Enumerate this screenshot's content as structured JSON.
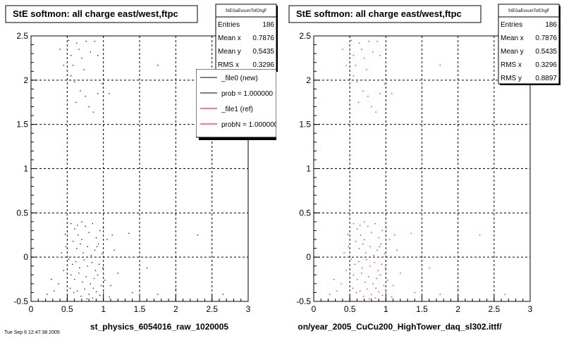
{
  "footer_text": "Tue Sep 6 12:47:38 2005",
  "chart_data": [
    {
      "type": "scatter",
      "title": "StE softmon: all charge east/west,ftpc",
      "xlabel": "st_physics_6054016_raw_1020005",
      "ylabel": "",
      "xlim": [
        0,
        3
      ],
      "ylim": [
        -0.5,
        2.5
      ],
      "x_ticks": [
        "0",
        "0.5",
        "1",
        "1.5",
        "2",
        "2.5",
        "3"
      ],
      "y_ticks": [
        "-0.5",
        "0",
        "0.5",
        "1",
        "1.5",
        "2",
        "2.5"
      ],
      "grid": true,
      "marker_color": "#000000",
      "stats": {
        "name": "StEGaEvsumTofChgF",
        "rows": [
          {
            "label": "Entries",
            "value": "186"
          },
          {
            "label": "Mean x",
            "value": "0.7876"
          },
          {
            "label": "Mean y",
            "value": "0.5435"
          },
          {
            "label": "RMS x",
            "value": "0.3296"
          }
        ]
      },
      "legend": {
        "placement": "top-right",
        "entries": [
          {
            "label": "_file0 (new)",
            "color": "#000000"
          },
          {
            "label": "prob = 1.000000",
            "color": "#000000"
          },
          {
            "label": "_file1 (ref)",
            "color": "#ff0000"
          },
          {
            "label": "probN = 1.000000",
            "color": "#ff0000"
          }
        ]
      }
    },
    {
      "type": "scatter",
      "title": "StE softmon: all charge east/west,ftpc",
      "xlabel": "on/year_2005_CuCu200_HighTower_daq_sl302.ittf/",
      "ylabel": "",
      "xlim": [
        0,
        3
      ],
      "ylim": [
        -0.5,
        2.5
      ],
      "x_ticks": [
        "0",
        "0.5",
        "1",
        "1.5",
        "2",
        "2.5",
        "3"
      ],
      "y_ticks": [
        "-0.5",
        "0",
        "0.5",
        "1",
        "1.5",
        "2",
        "2.5"
      ],
      "grid": true,
      "marker_color": "#ff0000",
      "stats": {
        "name": "StEGaEvsumTofChgF",
        "rows": [
          {
            "label": "Entries",
            "value": "186"
          },
          {
            "label": "Mean x",
            "value": "0.7876"
          },
          {
            "label": "Mean y",
            "value": "0.5435"
          },
          {
            "label": "RMS x",
            "value": "0.3296"
          },
          {
            "label": "RMS y",
            "value": "0.8897"
          }
        ]
      }
    }
  ],
  "points": [
    [
      0.52,
      2.45
    ],
    [
      0.55,
      2.28
    ],
    [
      0.58,
      2.17
    ],
    [
      0.63,
      2.42
    ],
    [
      0.66,
      2.35
    ],
    [
      0.7,
      2.25
    ],
    [
      0.73,
      2.12
    ],
    [
      0.76,
      2.44
    ],
    [
      0.82,
      2.32
    ],
    [
      0.88,
      2.44
    ],
    [
      0.92,
      2.28
    ],
    [
      0.55,
      2.05
    ],
    [
      0.6,
      1.98
    ],
    [
      0.68,
      1.88
    ],
    [
      0.75,
      1.82
    ],
    [
      0.8,
      1.7
    ],
    [
      0.86,
      1.64
    ],
    [
      0.92,
      1.85
    ],
    [
      0.98,
      1.96
    ],
    [
      0.62,
      1.75
    ],
    [
      0.45,
      2.17
    ],
    [
      0.4,
      2.35
    ],
    [
      1.75,
      2.17
    ],
    [
      1.08,
      1.85
    ],
    [
      0.55,
      0.38
    ],
    [
      0.6,
      0.32
    ],
    [
      0.65,
      0.25
    ],
    [
      0.7,
      0.4
    ],
    [
      0.75,
      0.35
    ],
    [
      0.8,
      0.28
    ],
    [
      0.85,
      0.38
    ],
    [
      0.9,
      0.22
    ],
    [
      0.95,
      0.3
    ],
    [
      1.0,
      0.33
    ],
    [
      0.58,
      0.18
    ],
    [
      0.63,
      0.1
    ],
    [
      0.68,
      0.15
    ],
    [
      0.72,
      0.05
    ],
    [
      0.78,
      0.12
    ],
    [
      0.83,
      0.02
    ],
    [
      0.88,
      0.08
    ],
    [
      0.93,
      0.15
    ],
    [
      0.98,
      0.04
    ],
    [
      1.05,
      0.2
    ],
    [
      0.52,
      -0.02
    ],
    [
      0.57,
      -0.08
    ],
    [
      0.62,
      -0.05
    ],
    [
      0.67,
      -0.12
    ],
    [
      0.73,
      -0.03
    ],
    [
      0.78,
      -0.1
    ],
    [
      0.84,
      -0.06
    ],
    [
      0.89,
      -0.15
    ],
    [
      0.94,
      -0.08
    ],
    [
      0.99,
      -0.12
    ],
    [
      0.55,
      -0.2
    ],
    [
      0.6,
      -0.25
    ],
    [
      0.66,
      -0.18
    ],
    [
      0.71,
      -0.28
    ],
    [
      0.76,
      -0.22
    ],
    [
      0.82,
      -0.3
    ],
    [
      0.87,
      -0.24
    ],
    [
      0.92,
      -0.2
    ],
    [
      0.97,
      -0.32
    ],
    [
      1.02,
      -0.26
    ],
    [
      0.54,
      -0.35
    ],
    [
      0.59,
      -0.4
    ],
    [
      0.64,
      -0.38
    ],
    [
      0.69,
      -0.44
    ],
    [
      0.74,
      -0.36
    ],
    [
      0.8,
      -0.42
    ],
    [
      0.85,
      -0.46
    ],
    [
      0.9,
      -0.39
    ],
    [
      0.95,
      -0.43
    ],
    [
      1.0,
      -0.4
    ],
    [
      0.48,
      0.12
    ],
    [
      0.45,
      -0.15
    ],
    [
      0.42,
      0.05
    ],
    [
      0.38,
      -0.3
    ],
    [
      0.47,
      0.26
    ],
    [
      0.28,
      -0.25
    ],
    [
      0.32,
      -0.38
    ],
    [
      0.22,
      -0.42
    ],
    [
      1.1,
      -0.32
    ],
    [
      1.15,
      0.08
    ],
    [
      1.2,
      -0.18
    ],
    [
      1.08,
      -0.45
    ],
    [
      1.12,
      0.25
    ],
    [
      1.35,
      0.27
    ],
    [
      1.4,
      -0.4
    ],
    [
      1.6,
      -0.12
    ],
    [
      1.75,
      -0.42
    ],
    [
      2.0,
      -0.36
    ],
    [
      2.3,
      0.25
    ],
    [
      2.65,
      -0.42
    ],
    [
      0.7,
      0.2
    ],
    [
      0.86,
      -0.35
    ],
    [
      0.64,
      0.36
    ],
    [
      0.91,
      0.12
    ],
    [
      0.77,
      -0.47
    ]
  ]
}
